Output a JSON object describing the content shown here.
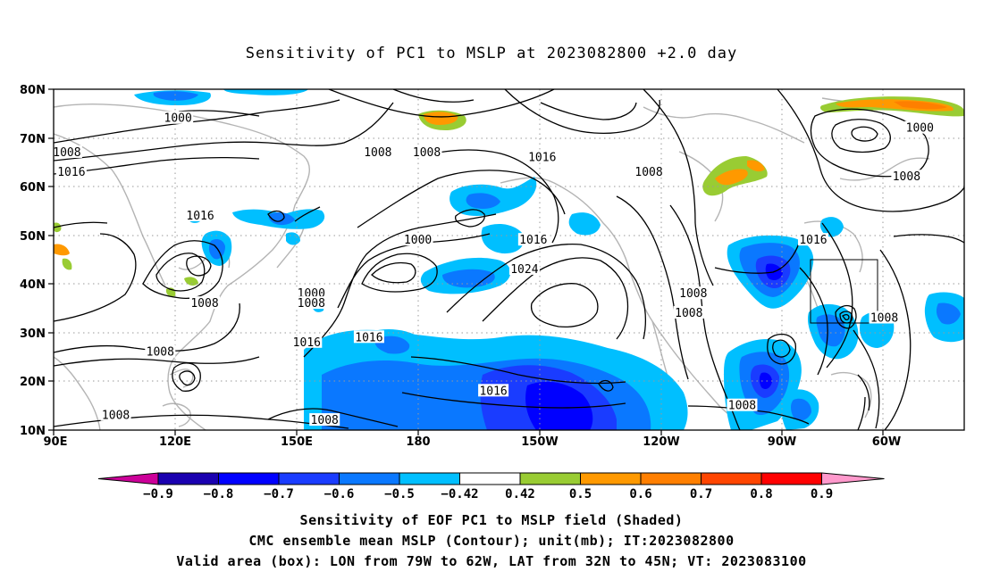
{
  "title": "Sensitivity of PC1 to MSLP at 2023082800 +2.0 day",
  "map": {
    "lat_labels": [
      "80N",
      "70N",
      "60N",
      "50N",
      "40N",
      "30N",
      "20N",
      "10N"
    ],
    "lon_labels": [
      "90E",
      "120E",
      "150E",
      "180",
      "150W",
      "120W",
      "90W",
      "60W"
    ],
    "contour_interval_mb": 8,
    "contour_labels": [
      {
        "text": "1000",
        "lon": 118,
        "lat": 74
      },
      {
        "text": "1008",
        "lon": 93,
        "lat": 67
      },
      {
        "text": "1016",
        "lon": 94,
        "lat": 63
      },
      {
        "text": "1008",
        "lon": 163,
        "lat": 67
      },
      {
        "text": "1008",
        "lon": 174,
        "lat": 67
      },
      {
        "text": "1016",
        "lon": 200,
        "lat": 66
      },
      {
        "text": "1008",
        "lon": 224,
        "lat": 63
      },
      {
        "text": "1016",
        "lon": 123,
        "lat": 54
      },
      {
        "text": "1000",
        "lon": 172,
        "lat": 49
      },
      {
        "text": "1016",
        "lon": 198,
        "lat": 49
      },
      {
        "text": "1024",
        "lon": 196,
        "lat": 43
      },
      {
        "text": "1000",
        "lon": 148,
        "lat": 38
      },
      {
        "text": "1008",
        "lon": 148,
        "lat": 36
      },
      {
        "text": "1008",
        "lon": 124,
        "lat": 36
      },
      {
        "text": "1008",
        "lon": 234,
        "lat": 38
      },
      {
        "text": "1008",
        "lon": 233,
        "lat": 34
      },
      {
        "text": "1016",
        "lon": 261,
        "lat": 49
      },
      {
        "text": "1008",
        "lon": 277,
        "lat": 33
      },
      {
        "text": "1016",
        "lon": 306,
        "lat": 48
      },
      {
        "text": "1000",
        "lon": 285,
        "lat": 72
      },
      {
        "text": "1008",
        "lon": 282,
        "lat": 62
      },
      {
        "text": "1008",
        "lon": 114,
        "lat": 26
      },
      {
        "text": "1016",
        "lon": 147,
        "lat": 28
      },
      {
        "text": "1016",
        "lon": 161,
        "lat": 29
      },
      {
        "text": "1016",
        "lon": 189,
        "lat": 18
      },
      {
        "text": "1008",
        "lon": 245,
        "lat": 15
      },
      {
        "text": "1008",
        "lon": 104,
        "lat": 13
      },
      {
        "text": "1008",
        "lon": 151,
        "lat": 12
      }
    ],
    "valid_box": {
      "lon_min": 281,
      "lon_max": 298,
      "lat_min": 32,
      "lat_max": 45
    }
  },
  "colorbar": {
    "labels": [
      "-0.9",
      "-0.8",
      "-0.7",
      "-0.6",
      "-0.5",
      "-0.42",
      "0.42",
      "0.5",
      "0.6",
      "0.7",
      "0.8",
      "0.9"
    ],
    "colors": [
      "#cc0099",
      "#1a00b0",
      "#0000ff",
      "#1a3cff",
      "#0a78ff",
      "#00bfff",
      "#ffffff",
      "#99cc33",
      "#ff9900",
      "#ff7f00",
      "#ff4500",
      "#ff0000",
      "#ff99cc"
    ]
  },
  "caption": {
    "line1": "Sensitivity of EOF PC1 to MSLP field (Shaded)",
    "line2": "CMC ensemble mean MSLP (Contour); unit(mb); IT:2023082800",
    "line3": "Valid area (box): LON from 79W to 62W, LAT from 32N to 45N; VT: 2023083100"
  }
}
